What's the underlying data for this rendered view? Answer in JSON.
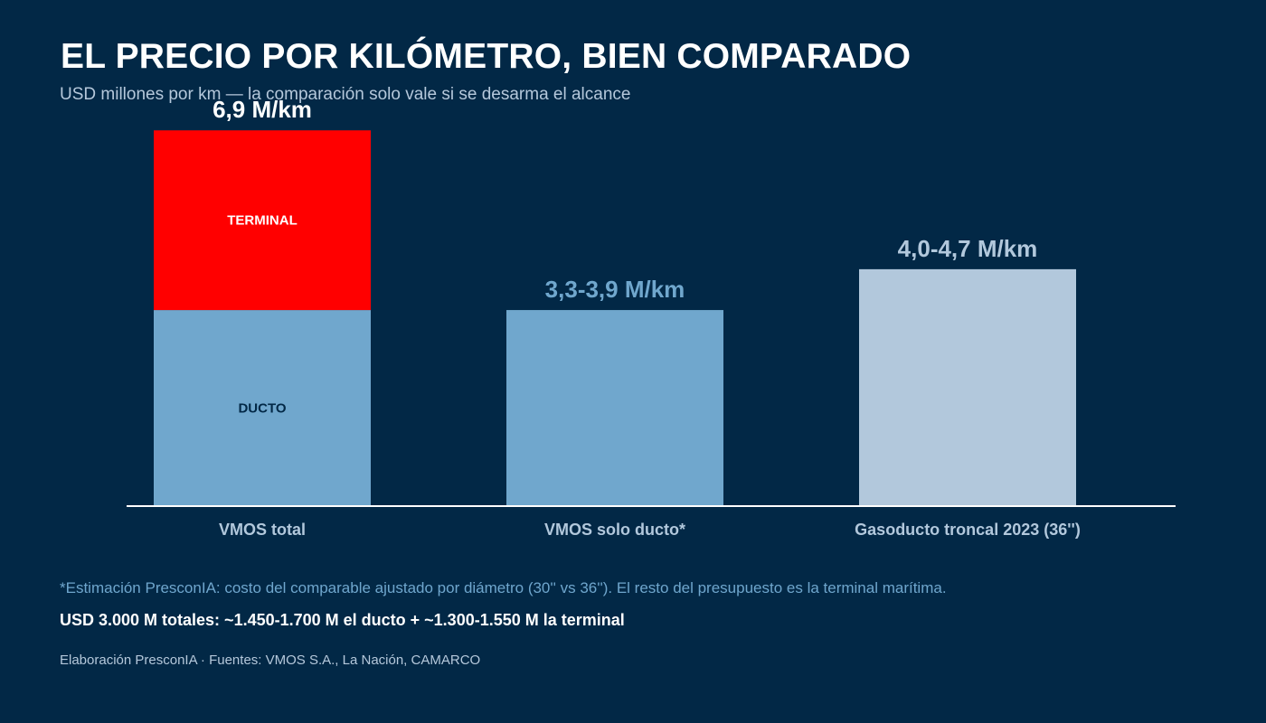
{
  "header": {
    "title": "EL PRECIO POR KILÓMETRO, BIEN COMPARADO",
    "subtitle": "USD millones por km — la comparación solo vale si se desarma el alcance"
  },
  "colors": {
    "background": "#022846",
    "terminal": "#ff0000",
    "ducto": "#70a7cd",
    "troncal": "#b2c8dc",
    "axis": "#ffffff"
  },
  "chart_data": {
    "type": "bar",
    "stacked": true,
    "categories": [
      "VMOS total",
      "VMOS solo ducto*",
      "Gasoducto troncal 2023 (36'')"
    ],
    "ylim": [
      0,
      7.8
    ],
    "bars": [
      {
        "category": "VMOS total",
        "total": 6.9,
        "label": "6,9 M/km",
        "segments": [
          {
            "name": "DUCTO",
            "value": 3.6,
            "color": "#70a7cd",
            "text_color": "#022846"
          },
          {
            "name": "TERMINAL",
            "value": 3.3,
            "color": "#ff0000",
            "text_color": "#ffffff"
          }
        ]
      },
      {
        "category": "VMOS solo ducto*",
        "total": 3.6,
        "label": "3,3-3,9 M/km",
        "segments": [
          {
            "name": "",
            "value": 3.6,
            "color": "#70a7cd"
          }
        ]
      },
      {
        "category": "Gasoducto troncal 2023 (36'')",
        "total": 4.35,
        "label": "4,0-4,7 M/km",
        "segments": [
          {
            "name": "",
            "value": 4.35,
            "color": "#b2c8dc"
          }
        ]
      }
    ]
  },
  "notes": {
    "footnote": "*Estimación PresconIA: costo del comparable ajustado por diámetro (30'' vs 36''). El resto del presupuesto es la terminal marítima.",
    "totals": "USD 3.000 M totales: ~1.450-1.700 M el ducto + ~1.300-1.550 M la terminal",
    "source": "Elaboración PresconIA · Fuentes: VMOS S.A., La Nación, CAMARCO"
  }
}
